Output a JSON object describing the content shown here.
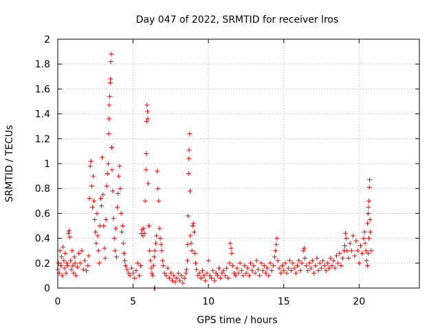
{
  "chart_data": {
    "type": "scatter",
    "title": "Day 047 of 2022, SRMTID for receiver lros",
    "xlabel": "GPS time / hours",
    "ylabel": "SRMTID / TECUs",
    "xlim": [
      0,
      24
    ],
    "ylim": [
      0,
      2
    ],
    "x_ticks": [
      0,
      5,
      10,
      15,
      20
    ],
    "x_tick_labels": [
      "0",
      "5",
      "10",
      "15",
      "20"
    ],
    "y_ticks": [
      0,
      0.2,
      0.4,
      0.6,
      0.8,
      1,
      1.2,
      1.4,
      1.6,
      1.8,
      2
    ],
    "y_tick_labels": [
      "0",
      "0.2",
      "0.4",
      "0.6",
      "0.8",
      "1",
      "1.2",
      "1.4",
      "1.6",
      "1.8",
      "2"
    ],
    "grid": true,
    "marker": "+",
    "color": "#ff0000",
    "series": [
      {
        "name": "SRMTID",
        "points": [
          [
            0.0,
            0.15
          ],
          [
            0.05,
            0.2
          ],
          [
            0.1,
            0.12
          ],
          [
            0.15,
            0.3
          ],
          [
            0.2,
            0.18
          ],
          [
            0.25,
            0.25
          ],
          [
            0.3,
            0.1
          ],
          [
            0.35,
            0.33
          ],
          [
            0.4,
            0.22
          ],
          [
            0.45,
            0.16
          ],
          [
            0.5,
            0.28
          ],
          [
            0.55,
            0.12
          ],
          [
            0.6,
            0.2
          ],
          [
            0.65,
            0.18
          ],
          [
            0.7,
            0.44
          ],
          [
            0.75,
            0.46
          ],
          [
            0.8,
            0.41
          ],
          [
            0.85,
            0.22
          ],
          [
            0.9,
            0.15
          ],
          [
            0.95,
            0.3
          ],
          [
            1.0,
            0.18
          ],
          [
            1.05,
            0.12
          ],
          [
            1.1,
            0.25
          ],
          [
            1.15,
            0.2
          ],
          [
            1.2,
            0.1
          ],
          [
            1.3,
            0.17
          ],
          [
            1.4,
            0.28
          ],
          [
            1.5,
            0.2
          ],
          [
            1.6,
            0.3
          ],
          [
            1.7,
            0.15
          ],
          [
            1.8,
            0.22
          ],
          [
            1.9,
            0.14
          ],
          [
            2.0,
            0.18
          ],
          [
            2.05,
            0.26
          ],
          [
            2.1,
            0.72
          ],
          [
            2.15,
            0.98
          ],
          [
            2.2,
            1.02
          ],
          [
            2.25,
            0.82
          ],
          [
            2.3,
            0.65
          ],
          [
            2.35,
            0.9
          ],
          [
            2.4,
            0.7
          ],
          [
            2.45,
            0.55
          ],
          [
            2.5,
            0.45
          ],
          [
            2.55,
            0.36
          ],
          [
            2.6,
            0.6
          ],
          [
            2.65,
            0.42
          ],
          [
            2.7,
            0.3
          ],
          [
            2.75,
            0.2
          ],
          [
            2.8,
            0.5
          ],
          [
            2.85,
            0.72
          ],
          [
            2.9,
            0.66
          ],
          [
            2.95,
            1.05
          ],
          [
            3.0,
            0.75
          ],
          [
            3.05,
            0.5
          ],
          [
            3.1,
            0.32
          ],
          [
            3.15,
            0.24
          ],
          [
            3.2,
            0.55
          ],
          [
            3.25,
            0.82
          ],
          [
            3.3,
            0.92
          ],
          [
            3.35,
            1.0
          ],
          [
            3.38,
            1.24
          ],
          [
            3.4,
            1.36
          ],
          [
            3.42,
            1.47
          ],
          [
            3.45,
            1.54
          ],
          [
            3.48,
            1.65
          ],
          [
            3.5,
            1.68
          ],
          [
            3.52,
            1.82
          ],
          [
            3.55,
            1.88
          ],
          [
            3.58,
            1.13
          ],
          [
            3.6,
            0.95
          ],
          [
            3.65,
            0.78
          ],
          [
            3.7,
            0.56
          ],
          [
            3.75,
            0.4
          ],
          [
            3.8,
            0.3
          ],
          [
            3.85,
            0.48
          ],
          [
            3.9,
            0.25
          ],
          [
            3.95,
            0.65
          ],
          [
            4.0,
            0.76
          ],
          [
            4.05,
            0.9
          ],
          [
            4.1,
            0.98
          ],
          [
            4.15,
            0.8
          ],
          [
            4.2,
            0.6
          ],
          [
            4.25,
            0.45
          ],
          [
            4.3,
            0.5
          ],
          [
            4.35,
            0.36
          ],
          [
            4.4,
            0.28
          ],
          [
            4.45,
            0.22
          ],
          [
            4.5,
            0.18
          ],
          [
            4.6,
            0.15
          ],
          [
            4.7,
            0.12
          ],
          [
            4.8,
            0.1
          ],
          [
            4.9,
            0.16
          ],
          [
            5.0,
            0.12
          ],
          [
            5.1,
            0.08
          ],
          [
            5.2,
            0.14
          ],
          [
            5.3,
            0.2
          ],
          [
            5.4,
            0.1
          ],
          [
            5.5,
            0.18
          ],
          [
            5.55,
            0.44
          ],
          [
            5.6,
            0.47
          ],
          [
            5.65,
            0.42
          ],
          [
            5.7,
            0.48
          ],
          [
            5.75,
            0.44
          ],
          [
            5.8,
            0.7
          ],
          [
            5.85,
            0.95
          ],
          [
            5.88,
            1.08
          ],
          [
            5.9,
            1.34
          ],
          [
            5.92,
            1.47
          ],
          [
            5.95,
            1.42
          ],
          [
            5.98,
            1.36
          ],
          [
            6.0,
            0.84
          ],
          [
            6.05,
            0.5
          ],
          [
            6.1,
            0.3
          ],
          [
            6.15,
            0.22
          ],
          [
            6.2,
            0.16
          ],
          [
            6.25,
            0.12
          ],
          [
            6.3,
            0.1
          ],
          [
            6.35,
            0.18
          ],
          [
            6.4,
            0.25
          ],
          [
            6.45,
            0.3
          ],
          [
            6.5,
            0.36
          ],
          [
            6.55,
            0.42
          ],
          [
            6.6,
            0.94
          ],
          [
            6.65,
            0.8
          ],
          [
            6.7,
            0.7
          ],
          [
            6.75,
            0.48
          ],
          [
            6.8,
            0.4
          ],
          [
            6.85,
            0.35
          ],
          [
            6.9,
            0.3
          ],
          [
            6.95,
            0.22
          ],
          [
            7.0,
            0.18
          ],
          [
            7.1,
            0.12
          ],
          [
            7.2,
            0.1
          ],
          [
            7.3,
            0.16
          ],
          [
            7.4,
            0.08
          ],
          [
            7.5,
            0.12
          ],
          [
            7.6,
            0.06
          ],
          [
            7.7,
            0.1
          ],
          [
            7.8,
            0.05
          ],
          [
            7.9,
            0.08
          ],
          [
            8.0,
            0.12
          ],
          [
            8.1,
            0.06
          ],
          [
            8.2,
            0.1
          ],
          [
            8.3,
            0.04
          ],
          [
            8.4,
            0.08
          ],
          [
            8.5,
            0.12
          ],
          [
            8.55,
            0.15
          ],
          [
            8.6,
            0.22
          ],
          [
            8.62,
            0.35
          ],
          [
            8.65,
            0.58
          ],
          [
            8.68,
            0.92
          ],
          [
            8.7,
            1.04
          ],
          [
            8.72,
            1.11
          ],
          [
            8.75,
            1.24
          ],
          [
            8.78,
            0.78
          ],
          [
            8.8,
            0.42
          ],
          [
            8.85,
            0.36
          ],
          [
            8.9,
            0.3
          ],
          [
            8.95,
            0.5
          ],
          [
            9.0,
            0.52
          ],
          [
            9.05,
            0.45
          ],
          [
            9.1,
            0.28
          ],
          [
            9.15,
            0.2
          ],
          [
            9.2,
            0.15
          ],
          [
            9.3,
            0.1
          ],
          [
            9.4,
            0.12
          ],
          [
            9.5,
            0.08
          ],
          [
            9.6,
            0.14
          ],
          [
            9.7,
            0.1
          ],
          [
            9.8,
            0.06
          ],
          [
            9.9,
            0.12
          ],
          [
            10.0,
            0.22
          ],
          [
            10.1,
            0.1
          ],
          [
            10.2,
            0.08
          ],
          [
            10.3,
            0.14
          ],
          [
            10.4,
            0.06
          ],
          [
            10.5,
            0.12
          ],
          [
            10.6,
            0.1
          ],
          [
            10.7,
            0.16
          ],
          [
            10.8,
            0.08
          ],
          [
            10.9,
            0.12
          ],
          [
            11.0,
            0.14
          ],
          [
            11.1,
            0.1
          ],
          [
            11.2,
            0.16
          ],
          [
            11.3,
            0.08
          ],
          [
            11.4,
            0.2
          ],
          [
            11.45,
            0.36
          ],
          [
            11.5,
            0.32
          ],
          [
            11.55,
            0.28
          ],
          [
            11.6,
            0.18
          ],
          [
            11.7,
            0.12
          ],
          [
            11.8,
            0.1
          ],
          [
            11.9,
            0.16
          ],
          [
            12.0,
            0.12
          ],
          [
            12.1,
            0.2
          ],
          [
            12.2,
            0.14
          ],
          [
            12.3,
            0.1
          ],
          [
            12.4,
            0.18
          ],
          [
            12.5,
            0.12
          ],
          [
            12.6,
            0.16
          ],
          [
            12.7,
            0.1
          ],
          [
            12.8,
            0.2
          ],
          [
            12.9,
            0.14
          ],
          [
            13.0,
            0.18
          ],
          [
            13.1,
            0.12
          ],
          [
            13.2,
            0.22
          ],
          [
            13.3,
            0.15
          ],
          [
            13.4,
            0.1
          ],
          [
            13.5,
            0.2
          ],
          [
            13.6,
            0.14
          ],
          [
            13.7,
            0.18
          ],
          [
            13.8,
            0.12
          ],
          [
            13.9,
            0.16
          ],
          [
            14.0,
            0.1
          ],
          [
            14.1,
            0.2
          ],
          [
            14.2,
            0.14
          ],
          [
            14.3,
            0.18
          ],
          [
            14.4,
            0.25
          ],
          [
            14.45,
            0.3
          ],
          [
            14.5,
            0.35
          ],
          [
            14.55,
            0.4
          ],
          [
            14.6,
            0.22
          ],
          [
            14.7,
            0.16
          ],
          [
            14.8,
            0.12
          ],
          [
            14.9,
            0.18
          ],
          [
            15.0,
            0.14
          ],
          [
            15.1,
            0.2
          ],
          [
            15.2,
            0.12
          ],
          [
            15.3,
            0.16
          ],
          [
            15.4,
            0.22
          ],
          [
            15.5,
            0.14
          ],
          [
            15.6,
            0.2
          ],
          [
            15.7,
            0.16
          ],
          [
            15.8,
            0.12
          ],
          [
            15.9,
            0.18
          ],
          [
            16.0,
            0.22
          ],
          [
            16.1,
            0.14
          ],
          [
            16.2,
            0.2
          ],
          [
            16.3,
            0.3
          ],
          [
            16.35,
            0.32
          ],
          [
            16.4,
            0.24
          ],
          [
            16.5,
            0.18
          ],
          [
            16.6,
            0.14
          ],
          [
            16.7,
            0.2
          ],
          [
            16.8,
            0.16
          ],
          [
            16.9,
            0.22
          ],
          [
            17.0,
            0.12
          ],
          [
            17.1,
            0.18
          ],
          [
            17.2,
            0.24
          ],
          [
            17.3,
            0.14
          ],
          [
            17.4,
            0.2
          ],
          [
            17.5,
            0.16
          ],
          [
            17.6,
            0.22
          ],
          [
            17.7,
            0.18
          ],
          [
            17.8,
            0.14
          ],
          [
            17.9,
            0.2
          ],
          [
            18.0,
            0.16
          ],
          [
            18.1,
            0.24
          ],
          [
            18.2,
            0.18
          ],
          [
            18.3,
            0.22
          ],
          [
            18.4,
            0.16
          ],
          [
            18.5,
            0.26
          ],
          [
            18.6,
            0.2
          ],
          [
            18.7,
            0.28
          ],
          [
            18.8,
            0.18
          ],
          [
            18.9,
            0.24
          ],
          [
            19.0,
            0.3
          ],
          [
            19.05,
            0.34
          ],
          [
            19.1,
            0.44
          ],
          [
            19.15,
            0.4
          ],
          [
            19.2,
            0.3
          ],
          [
            19.3,
            0.24
          ],
          [
            19.4,
            0.36
          ],
          [
            19.5,
            0.3
          ],
          [
            19.6,
            0.42
          ],
          [
            19.7,
            0.26
          ],
          [
            19.8,
            0.38
          ],
          [
            19.9,
            0.3
          ],
          [
            20.0,
            0.2
          ],
          [
            20.1,
            0.34
          ],
          [
            20.2,
            0.28
          ],
          [
            20.3,
            0.4
          ],
          [
            20.35,
            0.45
          ],
          [
            20.4,
            0.36
          ],
          [
            20.45,
            0.3
          ],
          [
            20.5,
            0.22
          ],
          [
            20.55,
            0.52
          ],
          [
            20.6,
            0.6
          ],
          [
            20.62,
            0.65
          ],
          [
            20.65,
            0.7
          ],
          [
            20.68,
            0.81
          ],
          [
            20.7,
            0.87
          ],
          [
            20.72,
            0.55
          ],
          [
            20.75,
            0.45
          ],
          [
            20.8,
            0.3
          ],
          [
            20.55,
            0.18
          ],
          [
            20.6,
            0.28
          ],
          [
            20.65,
            0.4
          ],
          [
            6.4,
            0.0
          ],
          [
            6.45,
            0.0
          ]
        ]
      }
    ]
  }
}
